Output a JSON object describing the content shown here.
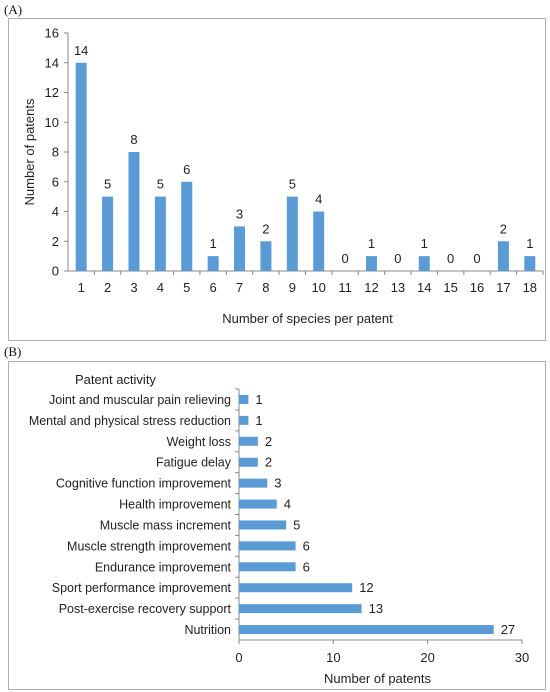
{
  "colors": {
    "bar": "#5B9BD5",
    "frame": "#b0b0b0",
    "axis": "#888888"
  },
  "chart_data": [
    {
      "type": "bar",
      "panel_label": "(A)",
      "title": "",
      "xlabel": "Number of species per patent",
      "ylabel": "Number of patents",
      "ylim": [
        0,
        16
      ],
      "yticks": [
        0,
        2,
        4,
        6,
        8,
        10,
        12,
        14,
        16
      ],
      "grid": false,
      "categories": [
        "1",
        "2",
        "3",
        "4",
        "5",
        "6",
        "7",
        "8",
        "9",
        "10",
        "11",
        "12",
        "13",
        "14",
        "15",
        "16",
        "17",
        "18"
      ],
      "values": [
        14,
        5,
        8,
        5,
        6,
        1,
        3,
        2,
        5,
        4,
        0,
        1,
        0,
        1,
        0,
        0,
        2,
        1
      ]
    },
    {
      "type": "bar",
      "orientation": "horizontal",
      "panel_label": "(B)",
      "title": "",
      "category_axis_title": "Patent activity",
      "xlabel": "Number of patents",
      "xlim": [
        0,
        30
      ],
      "xticks": [
        0,
        10,
        20,
        30
      ],
      "grid": false,
      "categories": [
        "Joint and muscular pain relieving",
        "Mental and physical stress reduction",
        "Weight loss",
        "Fatigue delay",
        "Cognitive function improvement",
        "Health improvement",
        "Muscle mass increment",
        "Muscle strength improvement",
        "Endurance improvement",
        "Sport performance  improvement",
        "Post-exercise recovery support",
        "Nutrition"
      ],
      "values": [
        1,
        1,
        2,
        2,
        3,
        4,
        5,
        6,
        6,
        12,
        13,
        27
      ]
    }
  ]
}
